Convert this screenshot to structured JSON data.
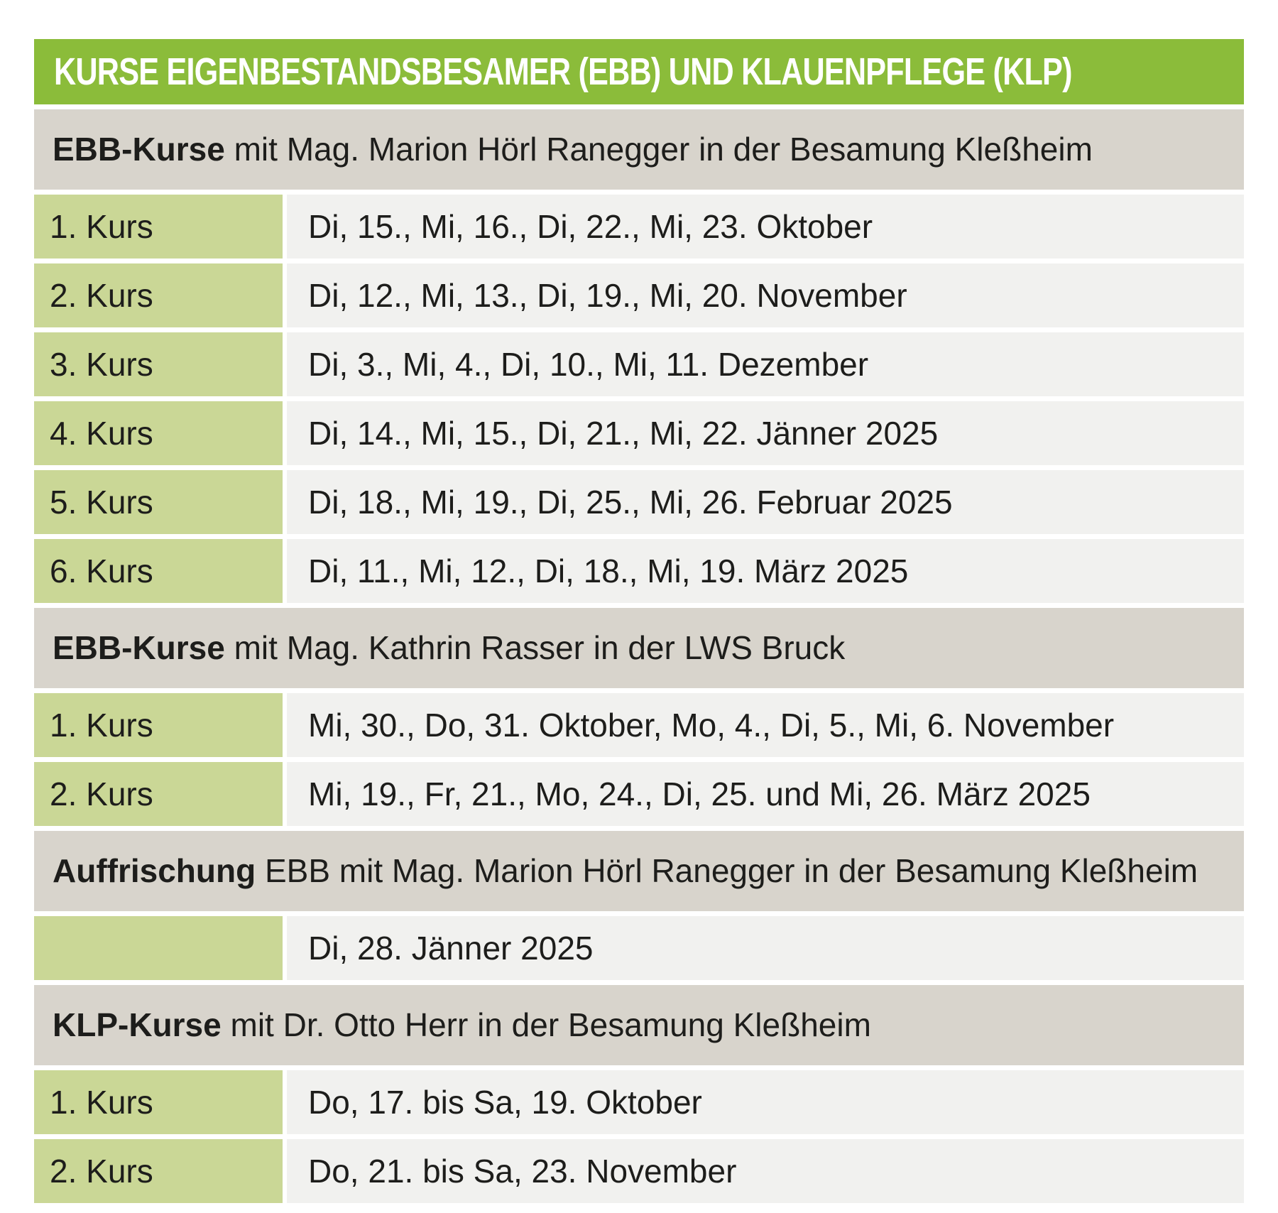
{
  "title": "KURSE EIGENBESTANDSBESAMER (EBB) UND KLAUENPFLEGE (KLP)",
  "colors": {
    "title_bar_green": "#8bbc3a",
    "label_cell_green": "#cad796",
    "dates_cell_gray": "#f1f1ef",
    "section_header_beige": "#d8d4cc",
    "title_text": "#ffffff",
    "body_text": "#1d1d1b"
  },
  "sections": [
    {
      "heading_bold": "EBB-Kurse",
      "heading_rest": " mit Mag. Marion Hörl Ranegger in der Besamung Kleßheim",
      "rows": [
        {
          "label": "1. Kurs",
          "dates": "Di, 15., Mi, 16., Di, 22., Mi, 23. Oktober"
        },
        {
          "label": "2. Kurs",
          "dates": "Di, 12., Mi, 13., Di, 19., Mi, 20. November"
        },
        {
          "label": "3. Kurs",
          "dates": "Di, 3., Mi, 4., Di, 10., Mi, 11. Dezember"
        },
        {
          "label": "4. Kurs",
          "dates": "Di, 14., Mi, 15., Di, 21., Mi, 22. Jänner 2025"
        },
        {
          "label": "5. Kurs",
          "dates": "Di, 18., Mi, 19., Di, 25., Mi, 26. Februar 2025"
        },
        {
          "label": "6. Kurs",
          "dates": "Di, 11., Mi, 12., Di, 18., Mi, 19. März 2025"
        }
      ]
    },
    {
      "heading_bold": "EBB-Kurse",
      "heading_rest": " mit Mag. Kathrin Rasser in der LWS Bruck",
      "rows": [
        {
          "label": "1. Kurs",
          "dates": "Mi, 30., Do, 31. Oktober, Mo, 4., Di, 5., Mi, 6. November"
        },
        {
          "label": "2. Kurs",
          "dates": "Mi, 19., Fr, 21., Mo, 24., Di, 25. und Mi, 26. März 2025"
        }
      ]
    },
    {
      "heading_bold": "Auffrischung",
      "heading_rest": " EBB mit Mag. Marion Hörl Ranegger in der Besamung Kleßheim",
      "rows": [
        {
          "label": "",
          "dates": "Di, 28. Jänner 2025"
        }
      ]
    },
    {
      "heading_bold": "KLP-Kurse",
      "heading_rest": " mit Dr. Otto Herr in der Besamung Kleßheim",
      "rows": [
        {
          "label": "1. Kurs",
          "dates": "Do, 17. bis Sa, 19. Oktober"
        },
        {
          "label": "2. Kurs",
          "dates": "Do, 21. bis Sa, 23. November"
        }
      ]
    }
  ]
}
